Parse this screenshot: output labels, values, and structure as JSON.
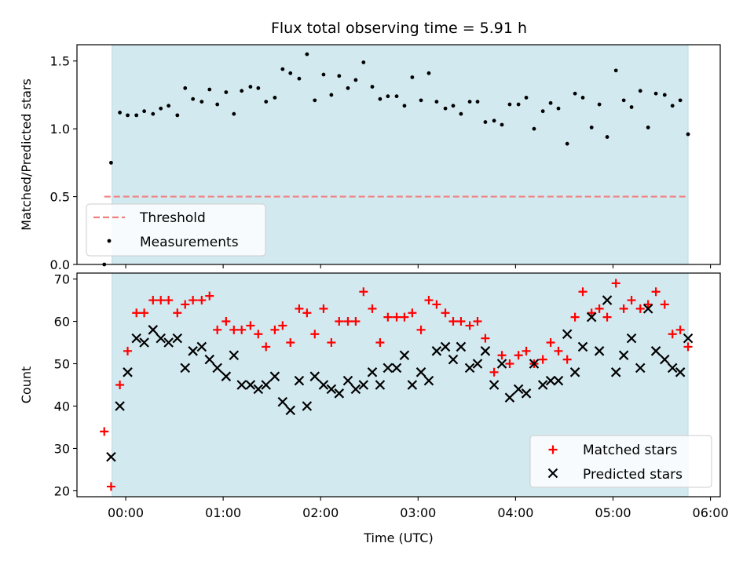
{
  "title": "Flux total observing time = 5.91 h",
  "shade_color": "#d3e9f0",
  "chart_data": [
    {
      "type": "scatter",
      "ylabel": "Matched/Predicted stars",
      "xlabel": "",
      "xlim": [
        -0.5,
        6.1
      ],
      "ylim": [
        0,
        1.62
      ],
      "yticks": [
        0.0,
        0.5,
        1.0,
        1.5
      ],
      "ytick_labels": [
        "0.0",
        "0.5",
        "1.0",
        "1.5"
      ],
      "xticks": [
        0,
        1,
        2,
        3,
        4,
        5,
        6
      ],
      "shaded_span": [
        -0.14,
        5.77
      ],
      "threshold": {
        "name": "Threshold",
        "value": 0.5,
        "x": [
          -0.22,
          5.77
        ],
        "color": "#f08080"
      },
      "legend": {
        "location": "lower-left",
        "entries": [
          "Threshold",
          "Measurements"
        ]
      },
      "series": [
        {
          "name": "Measurements",
          "marker": "dot",
          "color": "#000000",
          "points": [
            [
              -0.22,
              0.0
            ],
            [
              -0.15,
              0.75
            ],
            [
              -0.06,
              1.12
            ],
            [
              0.02,
              1.1
            ],
            [
              0.11,
              1.1
            ],
            [
              0.19,
              1.13
            ],
            [
              0.28,
              1.11
            ],
            [
              0.36,
              1.15
            ],
            [
              0.44,
              1.17
            ],
            [
              0.53,
              1.1
            ],
            [
              0.61,
              1.3
            ],
            [
              0.69,
              1.22
            ],
            [
              0.78,
              1.2
            ],
            [
              0.86,
              1.29
            ],
            [
              0.94,
              1.18
            ],
            [
              1.03,
              1.27
            ],
            [
              1.11,
              1.11
            ],
            [
              1.19,
              1.28
            ],
            [
              1.28,
              1.31
            ],
            [
              1.36,
              1.3
            ],
            [
              1.44,
              1.2
            ],
            [
              1.53,
              1.23
            ],
            [
              1.61,
              1.44
            ],
            [
              1.69,
              1.41
            ],
            [
              1.78,
              1.37
            ],
            [
              1.86,
              1.55
            ],
            [
              1.94,
              1.21
            ],
            [
              2.03,
              1.4
            ],
            [
              2.11,
              1.25
            ],
            [
              2.19,
              1.39
            ],
            [
              2.28,
              1.3
            ],
            [
              2.36,
              1.36
            ],
            [
              2.44,
              1.49
            ],
            [
              2.53,
              1.31
            ],
            [
              2.61,
              1.22
            ],
            [
              2.69,
              1.24
            ],
            [
              2.78,
              1.24
            ],
            [
              2.86,
              1.17
            ],
            [
              2.94,
              1.38
            ],
            [
              3.03,
              1.21
            ],
            [
              3.11,
              1.41
            ],
            [
              3.19,
              1.2
            ],
            [
              3.28,
              1.15
            ],
            [
              3.36,
              1.17
            ],
            [
              3.44,
              1.11
            ],
            [
              3.53,
              1.2
            ],
            [
              3.61,
              1.2
            ],
            [
              3.69,
              1.05
            ],
            [
              3.78,
              1.06
            ],
            [
              3.86,
              1.03
            ],
            [
              3.94,
              1.18
            ],
            [
              4.03,
              1.18
            ],
            [
              4.11,
              1.23
            ],
            [
              4.19,
              1.0
            ],
            [
              4.28,
              1.13
            ],
            [
              4.36,
              1.19
            ],
            [
              4.44,
              1.15
            ],
            [
              4.53,
              0.89
            ],
            [
              4.61,
              1.26
            ],
            [
              4.69,
              1.23
            ],
            [
              4.78,
              1.01
            ],
            [
              4.86,
              1.18
            ],
            [
              4.94,
              0.94
            ],
            [
              5.03,
              1.43
            ],
            [
              5.11,
              1.21
            ],
            [
              5.19,
              1.16
            ],
            [
              5.28,
              1.28
            ],
            [
              5.36,
              1.01
            ],
            [
              5.44,
              1.26
            ],
            [
              5.53,
              1.25
            ],
            [
              5.61,
              1.17
            ],
            [
              5.69,
              1.21
            ],
            [
              5.77,
              0.96
            ]
          ]
        }
      ]
    },
    {
      "type": "scatter",
      "ylabel": "Count",
      "xlabel": "Time (UTC)",
      "xlim": [
        -0.5,
        6.1
      ],
      "ylim": [
        18.6,
        71.4
      ],
      "yticks": [
        20,
        30,
        40,
        50,
        60,
        70
      ],
      "ytick_labels": [
        "20",
        "30",
        "40",
        "50",
        "60",
        "70"
      ],
      "xticks": [
        0,
        1,
        2,
        3,
        4,
        5,
        6
      ],
      "xtick_labels": [
        "00:00",
        "01:00",
        "02:00",
        "03:00",
        "04:00",
        "05:00",
        "06:00"
      ],
      "shaded_span": [
        -0.14,
        5.77
      ],
      "legend": {
        "location": "lower-right",
        "entries": [
          "Matched stars",
          "Predicted stars"
        ]
      },
      "series": [
        {
          "name": "Matched stars",
          "marker": "plus",
          "color": "#ff0000",
          "points": [
            [
              -0.22,
              34
            ],
            [
              -0.15,
              21
            ],
            [
              -0.06,
              45
            ],
            [
              0.02,
              53
            ],
            [
              0.11,
              62
            ],
            [
              0.19,
              62
            ],
            [
              0.28,
              65
            ],
            [
              0.36,
              65
            ],
            [
              0.44,
              65
            ],
            [
              0.53,
              62
            ],
            [
              0.61,
              64
            ],
            [
              0.69,
              65
            ],
            [
              0.78,
              65
            ],
            [
              0.86,
              66
            ],
            [
              0.94,
              58
            ],
            [
              1.03,
              60
            ],
            [
              1.11,
              58
            ],
            [
              1.19,
              58
            ],
            [
              1.28,
              59
            ],
            [
              1.36,
              57
            ],
            [
              1.44,
              54
            ],
            [
              1.53,
              58
            ],
            [
              1.61,
              59
            ],
            [
              1.69,
              55
            ],
            [
              1.78,
              63
            ],
            [
              1.86,
              62
            ],
            [
              1.94,
              57
            ],
            [
              2.03,
              63
            ],
            [
              2.11,
              55
            ],
            [
              2.19,
              60
            ],
            [
              2.28,
              60
            ],
            [
              2.36,
              60
            ],
            [
              2.44,
              67
            ],
            [
              2.53,
              63
            ],
            [
              2.61,
              55
            ],
            [
              2.69,
              61
            ],
            [
              2.78,
              61
            ],
            [
              2.86,
              61
            ],
            [
              2.94,
              62
            ],
            [
              3.03,
              58
            ],
            [
              3.11,
              65
            ],
            [
              3.19,
              64
            ],
            [
              3.28,
              62
            ],
            [
              3.36,
              60
            ],
            [
              3.44,
              60
            ],
            [
              3.53,
              59
            ],
            [
              3.61,
              60
            ],
            [
              3.69,
              56
            ],
            [
              3.78,
              48
            ],
            [
              3.86,
              52
            ],
            [
              3.94,
              50
            ],
            [
              4.03,
              52
            ],
            [
              4.11,
              53
            ],
            [
              4.19,
              50
            ],
            [
              4.28,
              51
            ],
            [
              4.36,
              55
            ],
            [
              4.44,
              53
            ],
            [
              4.53,
              51
            ],
            [
              4.61,
              61
            ],
            [
              4.69,
              67
            ],
            [
              4.78,
              62
            ],
            [
              4.86,
              63
            ],
            [
              4.94,
              61
            ],
            [
              5.03,
              69
            ],
            [
              5.11,
              63
            ],
            [
              5.19,
              65
            ],
            [
              5.28,
              63
            ],
            [
              5.36,
              64
            ],
            [
              5.44,
              67
            ],
            [
              5.53,
              64
            ],
            [
              5.61,
              57
            ],
            [
              5.69,
              58
            ],
            [
              5.77,
              54
            ]
          ]
        },
        {
          "name": "Predicted stars",
          "marker": "x",
          "color": "#000000",
          "points": [
            [
              -0.15,
              28
            ],
            [
              -0.06,
              40
            ],
            [
              0.02,
              48
            ],
            [
              0.11,
              56
            ],
            [
              0.19,
              55
            ],
            [
              0.28,
              58
            ],
            [
              0.36,
              56
            ],
            [
              0.44,
              55
            ],
            [
              0.53,
              56
            ],
            [
              0.61,
              49
            ],
            [
              0.69,
              53
            ],
            [
              0.78,
              54
            ],
            [
              0.86,
              51
            ],
            [
              0.94,
              49
            ],
            [
              1.03,
              47
            ],
            [
              1.11,
              52
            ],
            [
              1.19,
              45
            ],
            [
              1.28,
              45
            ],
            [
              1.36,
              44
            ],
            [
              1.44,
              45
            ],
            [
              1.53,
              47
            ],
            [
              1.61,
              41
            ],
            [
              1.69,
              39
            ],
            [
              1.78,
              46
            ],
            [
              1.86,
              40
            ],
            [
              1.94,
              47
            ],
            [
              2.03,
              45
            ],
            [
              2.11,
              44
            ],
            [
              2.19,
              43
            ],
            [
              2.28,
              46
            ],
            [
              2.36,
              44
            ],
            [
              2.44,
              45
            ],
            [
              2.53,
              48
            ],
            [
              2.61,
              45
            ],
            [
              2.69,
              49
            ],
            [
              2.78,
              49
            ],
            [
              2.86,
              52
            ],
            [
              2.94,
              45
            ],
            [
              3.03,
              48
            ],
            [
              3.11,
              46
            ],
            [
              3.19,
              53
            ],
            [
              3.28,
              54
            ],
            [
              3.36,
              51
            ],
            [
              3.44,
              54
            ],
            [
              3.53,
              49
            ],
            [
              3.61,
              50
            ],
            [
              3.69,
              53
            ],
            [
              3.78,
              45
            ],
            [
              3.86,
              50
            ],
            [
              3.94,
              42
            ],
            [
              4.03,
              44
            ],
            [
              4.11,
              43
            ],
            [
              4.19,
              50
            ],
            [
              4.28,
              45
            ],
            [
              4.36,
              46
            ],
            [
              4.44,
              46
            ],
            [
              4.53,
              57
            ],
            [
              4.61,
              48
            ],
            [
              4.69,
              54
            ],
            [
              4.78,
              61
            ],
            [
              4.86,
              53
            ],
            [
              4.94,
              65
            ],
            [
              5.03,
              48
            ],
            [
              5.11,
              52
            ],
            [
              5.19,
              56
            ],
            [
              5.28,
              49
            ],
            [
              5.36,
              63
            ],
            [
              5.44,
              53
            ],
            [
              5.53,
              51
            ],
            [
              5.61,
              49
            ],
            [
              5.69,
              48
            ],
            [
              5.77,
              56
            ]
          ]
        }
      ]
    }
  ]
}
